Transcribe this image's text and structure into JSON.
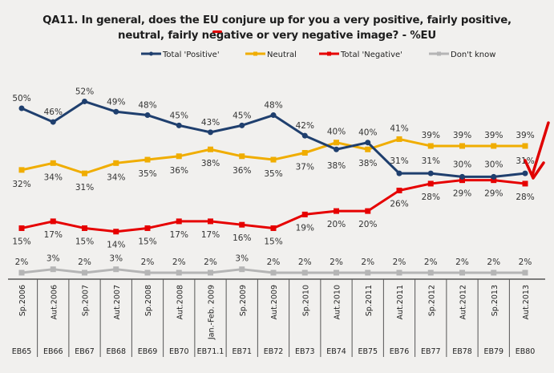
{
  "title_line1_a": "QA11. In general, does the ",
  "title_line1_eu": "EU",
  "title_line1_b": " conjure up for you a very positive, fairly positive,",
  "title_line2": "neutral, fairly negative or very negative image? - %EU",
  "annotation": {
    "underline_color": "#e00000",
    "arrow_color": "#e00000",
    "arrow_points_to": "Total 'Negative' Aut.2013"
  },
  "chart_data": {
    "type": "line",
    "title": "QA11. In general, does the EU conjure up for you a very positive, fairly positive, neutral, fairly negative or very negative image? - %EU",
    "xlabel": "",
    "ylabel": "",
    "ylim": [
      0,
      55
    ],
    "grid": false,
    "legend_position": "top",
    "categories": [
      "Sp.2006",
      "Aut.2006",
      "Sp.2007",
      "Aut.2007",
      "Sp.2008",
      "Aut.2008",
      "Jan.-Feb. 2009",
      "Sp.2009",
      "Aut.2009",
      "Sp.2010",
      "Aut.2010",
      "Sp.2011",
      "Aut.2011",
      "Sp.2012",
      "Aut.2012",
      "Sp.2013",
      "Aut.2013"
    ],
    "waves": [
      "EB65",
      "EB66",
      "EB67",
      "EB68",
      "EB69",
      "EB70",
      "EB71.1",
      "EB71",
      "EB72",
      "EB73",
      "EB74",
      "EB75",
      "EB76",
      "EB77",
      "EB78",
      "EB79",
      "EB80"
    ],
    "series": [
      {
        "name": "Total 'Positive'",
        "color": "#1f3f6e",
        "marker": "circle",
        "label_pos": "above",
        "values": [
          50,
          46,
          52,
          49,
          48,
          45,
          43,
          45,
          48,
          42,
          38,
          40,
          31,
          31,
          30,
          30,
          31
        ],
        "label_below": [
          false,
          false,
          false,
          false,
          false,
          false,
          false,
          false,
          false,
          false,
          true,
          false,
          false,
          false,
          false,
          false,
          false
        ]
      },
      {
        "name": "Neutral",
        "color": "#f0ad00",
        "marker": "square",
        "label_pos": "below",
        "values": [
          32,
          34,
          31,
          34,
          35,
          36,
          38,
          36,
          35,
          37,
          40,
          38,
          41,
          39,
          39,
          39,
          39
        ],
        "label_above": [
          false,
          false,
          false,
          false,
          false,
          false,
          false,
          false,
          false,
          false,
          true,
          false,
          true,
          true,
          true,
          true,
          true
        ]
      },
      {
        "name": "Total 'Negative'",
        "color": "#e60000",
        "marker": "square",
        "label_pos": "below",
        "values": [
          15,
          17,
          15,
          14,
          15,
          17,
          17,
          16,
          15,
          19,
          20,
          20,
          26,
          28,
          29,
          29,
          28
        ]
      },
      {
        "name": "Don't know",
        "color": "#b5b5b5",
        "marker": "square",
        "label_pos": "above",
        "values": [
          2,
          3,
          2,
          3,
          2,
          2,
          2,
          3,
          2,
          2,
          2,
          2,
          2,
          2,
          2,
          2,
          2
        ]
      }
    ]
  }
}
